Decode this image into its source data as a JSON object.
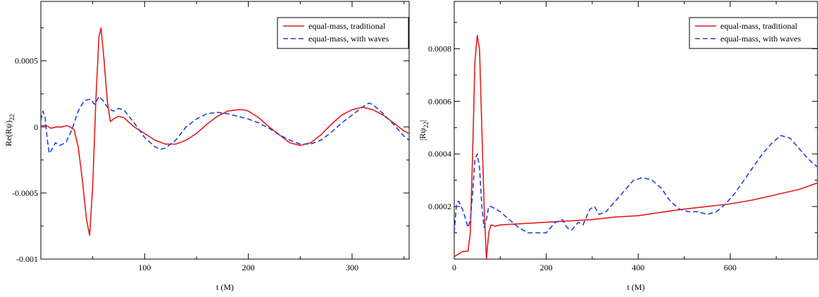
{
  "chart_data": [
    {
      "type": "line",
      "title": "",
      "xlabel": "t (M)",
      "ylabel": "Re(Rψ)",
      "ylabel_sub": "22",
      "xlim": [
        0,
        355
      ],
      "ylim": [
        -0.001,
        0.00095
      ],
      "xticks": [
        100,
        200,
        300
      ],
      "xtick_labels": [
        "100",
        "200",
        "300"
      ],
      "yticks": [
        -0.001,
        -0.0005,
        0,
        0.0005
      ],
      "ytick_labels": [
        "-0.001",
        "-0.0005",
        "0",
        "0.0005"
      ],
      "grid": false,
      "legend_position": "top-right",
      "series": [
        {
          "name": "equal-mass, traditional",
          "color": "#e41a1c",
          "dash": "solid",
          "x": [
            0,
            5,
            10,
            15,
            20,
            25,
            28,
            32,
            36,
            40,
            44,
            47,
            50,
            53,
            56,
            58,
            61,
            64,
            67,
            70,
            75,
            80,
            90,
            100,
            110,
            120,
            130,
            140,
            150,
            160,
            170,
            180,
            190,
            195,
            200,
            210,
            220,
            230,
            240,
            250,
            260,
            270,
            280,
            290,
            300,
            310,
            320,
            330,
            340,
            350,
            355
          ],
          "y": [
            1e-05,
            1e-05,
            -1e-05,
            0.0,
            0.0,
            1e-05,
            0.0,
            -2e-05,
            -0.00015,
            -0.0004,
            -0.0007,
            -0.00082,
            -0.00045,
            0.0002,
            0.00068,
            0.00075,
            0.0005,
            0.0002,
            4e-05,
            6e-05,
            8e-05,
            7e-05,
            0.0,
            -5e-05,
            -0.0001,
            -0.00013,
            -0.00013,
            -0.0001,
            -5e-05,
            2e-05,
            8e-05,
            0.00012,
            0.00013,
            0.00013,
            0.00012,
            7e-05,
            0.0,
            -6e-05,
            -0.00012,
            -0.00014,
            -0.00012,
            -6e-05,
            2e-05,
            9e-05,
            0.00013,
            0.00015,
            0.00013,
            9e-05,
            3e-05,
            -3e-05,
            -5e-05
          ]
        },
        {
          "name": "equal-mass, with waves",
          "color": "#1f3fd8",
          "dash": "dashed",
          "x": [
            0,
            2,
            4,
            6,
            8,
            10,
            14,
            18,
            24,
            30,
            36,
            42,
            48,
            52,
            56,
            60,
            65,
            70,
            75,
            80,
            90,
            100,
            110,
            115,
            120,
            130,
            140,
            150,
            160,
            170,
            180,
            190,
            200,
            210,
            220,
            230,
            240,
            250,
            260,
            270,
            280,
            290,
            300,
            310,
            316,
            320,
            330,
            340,
            350,
            355
          ],
          "y": [
            5e-05,
            0.00012,
            8e-05,
            -8e-05,
            -0.0002,
            -0.00018,
            -0.00012,
            -0.00014,
            -0.00012,
            -2e-05,
            0.00012,
            0.0002,
            0.00021,
            0.00017,
            0.00023,
            0.0002,
            0.00014,
            0.00012,
            0.00014,
            0.00013,
            3e-05,
            -8e-05,
            -0.00015,
            -0.00017,
            -0.00016,
            -0.0001,
            0.0,
            6e-05,
            0.0001,
            0.00011,
            0.0001,
            8e-05,
            6e-05,
            3e-05,
            -1e-05,
            -6e-05,
            -0.0001,
            -0.00013,
            -0.00013,
            -0.0001,
            -4e-05,
            3e-05,
            9e-05,
            0.00015,
            0.00018,
            0.00017,
            0.0001,
            2e-05,
            -7e-05,
            -0.0001
          ]
        }
      ]
    },
    {
      "type": "line",
      "title": "",
      "xlabel": "t (M)",
      "ylabel": "|Rψ",
      "ylabel_sub": "22",
      "ylabel_suffix": "|",
      "xlim": [
        0,
        790
      ],
      "ylim": [
        0,
        0.00098
      ],
      "xticks": [
        0,
        200,
        400,
        600
      ],
      "xtick_labels": [
        "0",
        "200",
        "400",
        "600"
      ],
      "yticks": [
        0.0002,
        0.0004,
        0.0006,
        0.0008
      ],
      "ytick_labels": [
        "0.0002",
        "0.0004",
        "0.0006",
        "0.0008"
      ],
      "grid": false,
      "legend_position": "top-right",
      "series": [
        {
          "name": "equal-mass, traditional",
          "color": "#e41a1c",
          "dash": "solid",
          "x": [
            0,
            10,
            20,
            30,
            35,
            40,
            45,
            50,
            55,
            60,
            65,
            70,
            75,
            80,
            90,
            100,
            150,
            200,
            250,
            300,
            350,
            400,
            450,
            500,
            550,
            600,
            650,
            700,
            750,
            790
          ],
          "y": [
            1e-05,
            2e-05,
            3e-05,
            3e-05,
            0.0001,
            0.0004,
            0.00075,
            0.00085,
            0.0008,
            0.0005,
            0.0002,
            0.0,
            0.0001,
            0.00013,
            0.000125,
            0.00013,
            0.000135,
            0.00014,
            0.000145,
            0.00015,
            0.00016,
            0.000165,
            0.000178,
            0.00019,
            0.0002,
            0.00021,
            0.000225,
            0.000245,
            0.000265,
            0.00029
          ]
        },
        {
          "name": "equal-mass, with waves",
          "color": "#1f3fd8",
          "dash": "dashed",
          "x": [
            0,
            5,
            10,
            15,
            20,
            25,
            30,
            35,
            40,
            45,
            50,
            55,
            60,
            65,
            70,
            75,
            80,
            90,
            100,
            120,
            140,
            160,
            180,
            200,
            220,
            235,
            245,
            255,
            270,
            280,
            295,
            305,
            315,
            330,
            350,
            370,
            390,
            410,
            430,
            450,
            470,
            490,
            510,
            530,
            550,
            570,
            590,
            610,
            630,
            650,
            670,
            690,
            710,
            730,
            750,
            770,
            790
          ],
          "y": [
            0.0001,
            0.00021,
            0.00022,
            0.0002,
            0.00018,
            0.00015,
            0.00012,
            0.00015,
            0.00025,
            0.00038,
            0.0004,
            0.00035,
            0.0002,
            0.00012,
            0.00015,
            0.0002,
            0.0002,
            0.00019,
            0.00018,
            0.00015,
            0.00012,
            0.0001,
            0.0001,
            0.0001,
            0.00014,
            0.00015,
            0.00012,
            0.00011,
            0.00014,
            0.00013,
            0.00019,
            0.0002,
            0.00017,
            0.00018,
            0.00022,
            0.00026,
            0.0003,
            0.00031,
            0.0003,
            0.00027,
            0.00022,
            0.00019,
            0.00018,
            0.00018,
            0.00017,
            0.00018,
            0.00021,
            0.00025,
            0.0003,
            0.00035,
            0.0004,
            0.00044,
            0.00047,
            0.00046,
            0.00042,
            0.00038,
            0.00035
          ]
        }
      ]
    }
  ]
}
